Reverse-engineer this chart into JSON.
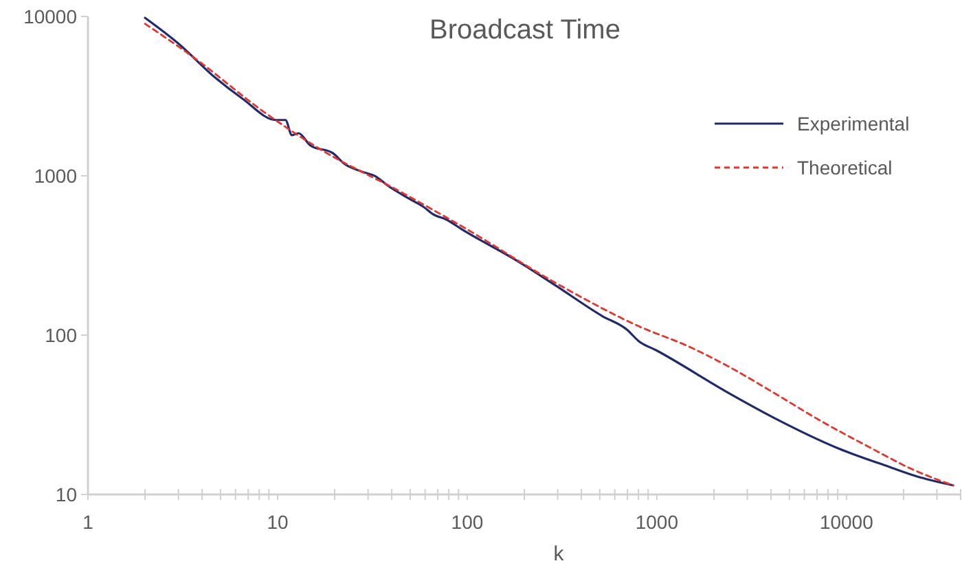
{
  "chart_data": {
    "type": "line",
    "title": "Broadcast Time",
    "xlabel": "k",
    "log": "xy",
    "xlim": [
      1,
      40000
    ],
    "ylim": [
      10,
      10000
    ],
    "xticks": [
      1,
      {
        "value": 2,
        "label": null
      },
      {
        "value": 3,
        "label": null
      },
      {
        "value": 4,
        "label": null
      },
      {
        "value": 5,
        "label": null
      },
      {
        "value": 6,
        "label": null
      },
      {
        "value": 7,
        "label": null
      },
      {
        "value": 8,
        "label": null
      },
      {
        "value": 9,
        "label": null
      },
      10,
      {
        "value": 20,
        "label": null
      },
      {
        "value": 30,
        "label": null
      },
      {
        "value": 40,
        "label": null
      },
      {
        "value": 50,
        "label": null
      },
      {
        "value": 60,
        "label": null
      },
      {
        "value": 70,
        "label": null
      },
      {
        "value": 80,
        "label": null
      },
      {
        "value": 90,
        "label": null
      },
      100,
      {
        "value": 200,
        "label": null
      },
      {
        "value": 300,
        "label": null
      },
      {
        "value": 400,
        "label": null
      },
      {
        "value": 500,
        "label": null
      },
      {
        "value": 600,
        "label": null
      },
      {
        "value": 700,
        "label": null
      },
      {
        "value": 800,
        "label": null
      },
      {
        "value": 900,
        "label": null
      },
      1000,
      {
        "value": 2000,
        "label": null
      },
      {
        "value": 3000,
        "label": null
      },
      {
        "value": 4000,
        "label": null
      },
      {
        "value": 5000,
        "label": null
      },
      {
        "value": 6000,
        "label": null
      },
      {
        "value": 7000,
        "label": null
      },
      {
        "value": 8000,
        "label": null
      },
      {
        "value": 9000,
        "label": null
      },
      10000,
      {
        "value": 20000,
        "label": null
      },
      {
        "value": 30000,
        "label": null
      },
      {
        "value": 40000,
        "label": null
      }
    ],
    "yticks": [
      10,
      100,
      1000,
      10000
    ],
    "grid": false,
    "legend": "right",
    "series": [
      {
        "name": "Experimental",
        "color": "#1f2a6e",
        "line_style": "solid",
        "x": [
          2,
          3,
          4.7,
          6.5,
          9.8,
          11,
          11.9,
          12.9,
          14.9,
          19.6,
          22.5,
          28,
          33,
          38,
          50,
          59,
          66,
          78,
          93,
          184,
          296,
          514,
          697,
          800,
          1000,
          2420,
          4210,
          9120,
          16800,
          23400,
          36500
        ],
        "values": [
          9800,
          6760,
          4120,
          3060,
          2240,
          2240,
          1800,
          1850,
          1550,
          1385,
          1190,
          1060,
          990,
          870,
          713,
          637,
          574,
          530,
          464,
          292,
          203,
          132,
          108,
          92,
          80,
          43,
          30,
          19.4,
          14.9,
          13,
          11.4
        ]
      },
      {
        "name": "Theoretical",
        "color": "#e8332a",
        "line_style": "dashed",
        "x": [
          2,
          3.6,
          8.5,
          16.6,
          45,
          98,
          296,
          800,
          1500,
          2420,
          4200,
          7300,
          13000,
          22200,
          36500
        ],
        "values": [
          9000,
          5550,
          2510,
          1480,
          788,
          467,
          211,
          114,
          84,
          63,
          43,
          29,
          20,
          14.4,
          11.4
        ]
      }
    ]
  }
}
